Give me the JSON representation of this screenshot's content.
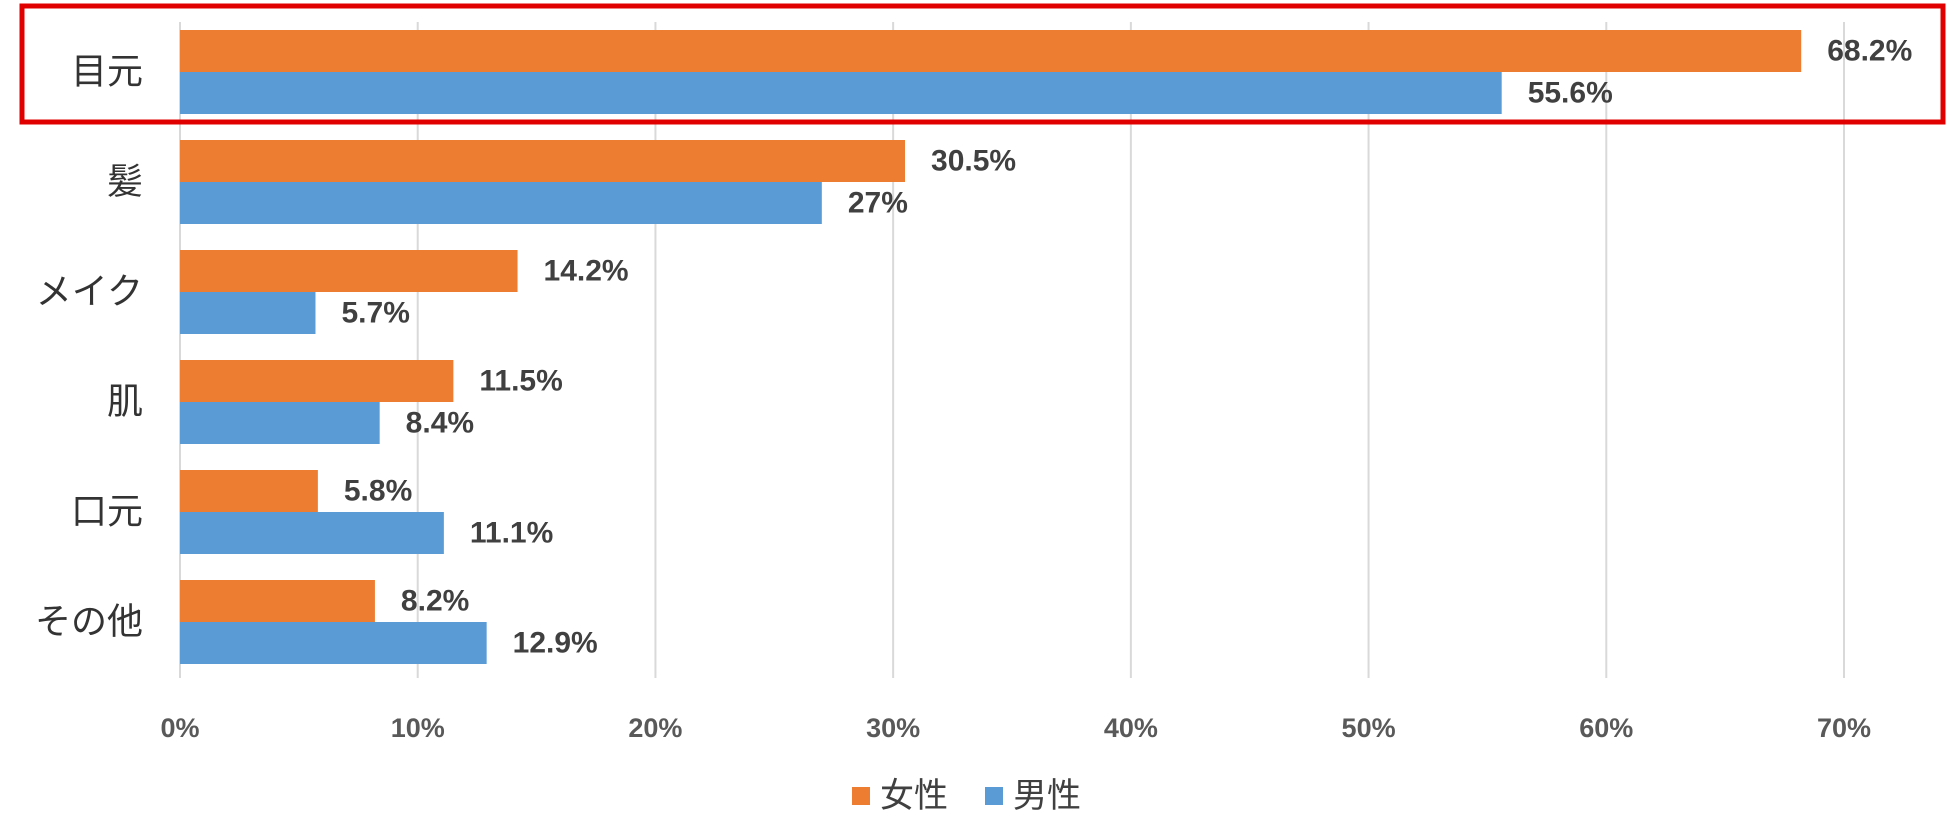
{
  "chart_data": {
    "type": "bar",
    "orientation": "horizontal",
    "categories": [
      "目元",
      "髪",
      "メイク",
      "肌",
      "口元",
      "その他"
    ],
    "series": [
      {
        "name": "女性",
        "color": "#ED7D31",
        "values": [
          68.2,
          30.5,
          14.2,
          11.5,
          5.8,
          8.2
        ],
        "data_labels": [
          "68.2%",
          "30.5%",
          "14.2%",
          "11.5%",
          "5.8%",
          "8.2%"
        ]
      },
      {
        "name": "男性",
        "color": "#5B9BD5",
        "values": [
          55.6,
          27,
          5.7,
          8.4,
          11.1,
          12.9
        ],
        "data_labels": [
          "55.6%",
          "27%",
          "5.7%",
          "8.4%",
          "11.1%",
          "12.9%"
        ]
      }
    ],
    "xlim": [
      0,
      70
    ],
    "xticks": [
      0,
      10,
      20,
      30,
      40,
      50,
      60,
      70
    ],
    "xtick_labels": [
      "0%",
      "10%",
      "20%",
      "30%",
      "40%",
      "50%",
      "60%",
      "70%"
    ],
    "grid": "vertical",
    "gridline_color": "#D9D9D9",
    "legend": "bottom-center",
    "highlight": {
      "category_index": 0,
      "color": "#E00000"
    }
  }
}
